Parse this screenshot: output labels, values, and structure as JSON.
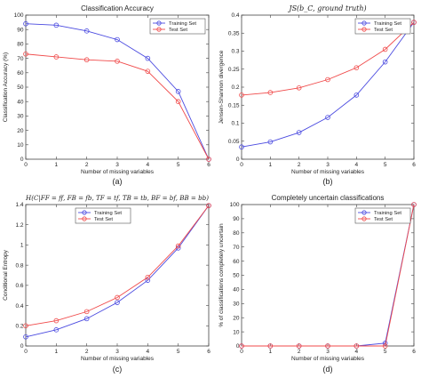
{
  "colors": {
    "training": "#4a4ae0",
    "test": "#f04a4a"
  },
  "chart_data": [
    {
      "type": "line",
      "title": "Classification Accuracy",
      "caption": "(a)",
      "xlabel": "Number of missing variables",
      "ylabel": "Classification Accuracy (%)",
      "xlim": [
        0,
        6
      ],
      "ylim": [
        0,
        100
      ],
      "xticks": [
        "0",
        "1",
        "2",
        "3",
        "4",
        "5",
        "6"
      ],
      "yticks": [
        "0",
        "10",
        "20",
        "30",
        "40",
        "50",
        "60",
        "70",
        "80",
        "90",
        "100"
      ],
      "legend": "top-right",
      "x": [
        0,
        1,
        2,
        3,
        4,
        5,
        6
      ],
      "series": [
        {
          "name": "Training Set",
          "values": [
            94,
            93,
            89,
            83,
            70,
            47,
            0
          ]
        },
        {
          "name": "Test Set",
          "values": [
            73,
            71,
            69,
            68,
            61,
            40,
            0
          ]
        }
      ]
    },
    {
      "type": "line",
      "title": "JS(b_C, ground truth)",
      "caption": "(b)",
      "xlabel": "Number of missing variables",
      "ylabel": "Jensen-Shannon divergence",
      "xlim": [
        0,
        6
      ],
      "ylim": [
        0,
        0.4
      ],
      "xticks": [
        "0",
        "1",
        "2",
        "3",
        "4",
        "5",
        "6"
      ],
      "yticks": [
        "0",
        "0.05",
        "0.1",
        "0.15",
        "0.2",
        "0.25",
        "0.3",
        "0.35",
        "0.4"
      ],
      "legend": "top-right",
      "x": [
        0,
        1,
        2,
        3,
        4,
        5,
        6
      ],
      "series": [
        {
          "name": "Training Set",
          "values": [
            0.034,
            0.048,
            0.074,
            0.116,
            0.178,
            0.27,
            0.38
          ]
        },
        {
          "name": "Test Set",
          "values": [
            0.178,
            0.185,
            0.198,
            0.221,
            0.254,
            0.305,
            0.38
          ]
        }
      ]
    },
    {
      "type": "line",
      "title": "H(C|FF = ff, FB = fb, TF = tf, TB = tb, BF = bf, BB = bb)",
      "caption": "(c)",
      "xlabel": "Number of missing variables",
      "ylabel": "Conditional Entropy",
      "xlim": [
        0,
        6
      ],
      "ylim": [
        0,
        1.4
      ],
      "xticks": [
        "0",
        "1",
        "2",
        "3",
        "4",
        "5",
        "6"
      ],
      "yticks": [
        "0",
        "0.2",
        "0.4",
        "0.6",
        "0.8",
        "1",
        "1.2",
        "1.4"
      ],
      "legend": "top-left",
      "x": [
        0,
        1,
        2,
        3,
        4,
        5,
        6
      ],
      "series": [
        {
          "name": "Training Set",
          "values": [
            0.09,
            0.16,
            0.27,
            0.43,
            0.65,
            0.97,
            1.39
          ]
        },
        {
          "name": "Test Set",
          "values": [
            0.2,
            0.25,
            0.34,
            0.48,
            0.68,
            0.99,
            1.39
          ]
        }
      ]
    },
    {
      "type": "line",
      "title": "Completely uncertain classifications",
      "caption": "(d)",
      "xlabel": "Number of missing variables",
      "ylabel": "% of classifications completely uncertain",
      "xlim": [
        0,
        6
      ],
      "ylim": [
        0,
        100
      ],
      "xticks": [
        "0",
        "1",
        "2",
        "3",
        "4",
        "5",
        "6"
      ],
      "yticks": [
        "0",
        "10",
        "20",
        "30",
        "40",
        "50",
        "60",
        "70",
        "80",
        "90",
        "100"
      ],
      "legend": "top-right",
      "x": [
        0,
        1,
        2,
        3,
        4,
        5,
        6
      ],
      "series": [
        {
          "name": "Training Set",
          "values": [
            0,
            0,
            0,
            0,
            0,
            2,
            100
          ]
        },
        {
          "name": "Test Set",
          "values": [
            0,
            0,
            0,
            0,
            0,
            0,
            100
          ]
        }
      ]
    }
  ]
}
